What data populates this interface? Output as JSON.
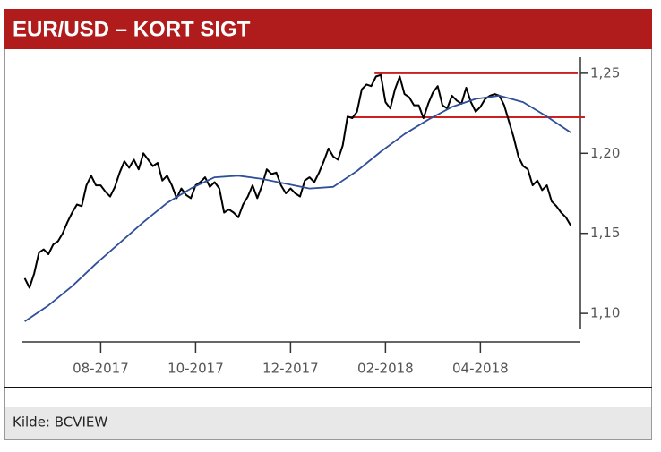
{
  "chart_data": {
    "type": "line",
    "title": "EUR/USD – KORT SIGT",
    "source": "Kilde: BCVIEW",
    "xlim": [
      6.35,
      18.05
    ],
    "xticks": [
      {
        "value": 8,
        "label": "08-2017"
      },
      {
        "value": 10,
        "label": "10-2017"
      },
      {
        "value": 12,
        "label": "12-2017"
      },
      {
        "value": 14,
        "label": "02-2018"
      },
      {
        "value": 16,
        "label": "04-2018"
      }
    ],
    "ylim": [
      1.09,
      1.26
    ],
    "yticks": [
      {
        "value": 1.25,
        "label": "1,25"
      },
      {
        "value": 1.2,
        "label": "1,20"
      },
      {
        "value": 1.15,
        "label": "1,15"
      },
      {
        "value": 1.1,
        "label": "1,10"
      }
    ],
    "series": [
      {
        "color": "#000000",
        "x": [
          6.4,
          6.5,
          6.6,
          6.7,
          6.8,
          6.9,
          7.0,
          7.1,
          7.2,
          7.3,
          7.4,
          7.5,
          7.6,
          7.7,
          7.8,
          7.9,
          8.0,
          8.1,
          8.2,
          8.3,
          8.4,
          8.5,
          8.6,
          8.7,
          8.8,
          8.9,
          9.0,
          9.1,
          9.2,
          9.3,
          9.4,
          9.5,
          9.6,
          9.7,
          9.8,
          9.9,
          10.0,
          10.1,
          10.2,
          10.3,
          10.4,
          10.5,
          10.6,
          10.7,
          10.8,
          10.9,
          11.0,
          11.1,
          11.2,
          11.3,
          11.4,
          11.5,
          11.6,
          11.7,
          11.8,
          11.9,
          12.0,
          12.1,
          12.2,
          12.3,
          12.4,
          12.5,
          12.6,
          12.7,
          12.8,
          12.9,
          13.0,
          13.1,
          13.2,
          13.3,
          13.4,
          13.5,
          13.6,
          13.7,
          13.8,
          13.9,
          14.0,
          14.1,
          14.2,
          14.3,
          14.4,
          14.5,
          14.6,
          14.7,
          14.8,
          14.9,
          15.0,
          15.1,
          15.2,
          15.3,
          15.4,
          15.5,
          15.6,
          15.7,
          15.8,
          15.9,
          16.0,
          16.1,
          16.2,
          16.3,
          16.4,
          16.5,
          16.6,
          16.7,
          16.8,
          16.9,
          17.0,
          17.1,
          17.2,
          17.3,
          17.4,
          17.5,
          17.6,
          17.7,
          17.8,
          17.9
        ],
        "values": [
          1.122,
          1.116,
          1.125,
          1.138,
          1.14,
          1.137,
          1.143,
          1.145,
          1.15,
          1.157,
          1.163,
          1.168,
          1.167,
          1.18,
          1.186,
          1.18,
          1.18,
          1.176,
          1.173,
          1.179,
          1.188,
          1.195,
          1.191,
          1.196,
          1.19,
          1.2,
          1.196,
          1.192,
          1.194,
          1.183,
          1.186,
          1.18,
          1.172,
          1.178,
          1.174,
          1.172,
          1.18,
          1.182,
          1.185,
          1.179,
          1.182,
          1.178,
          1.163,
          1.165,
          1.163,
          1.16,
          1.168,
          1.173,
          1.18,
          1.172,
          1.18,
          1.19,
          1.187,
          1.188,
          1.18,
          1.175,
          1.178,
          1.175,
          1.173,
          1.183,
          1.185,
          1.182,
          1.188,
          1.195,
          1.203,
          1.198,
          1.196,
          1.205,
          1.223,
          1.222,
          1.226,
          1.24,
          1.243,
          1.242,
          1.248,
          1.249,
          1.232,
          1.228,
          1.24,
          1.248,
          1.237,
          1.235,
          1.23,
          1.23,
          1.222,
          1.231,
          1.238,
          1.242,
          1.23,
          1.228,
          1.236,
          1.233,
          1.231,
          1.241,
          1.232,
          1.226,
          1.229,
          1.234,
          1.236,
          1.237,
          1.236,
          1.23,
          1.22,
          1.21,
          1.198,
          1.192,
          1.19,
          1.18,
          1.183,
          1.177,
          1.18,
          1.17,
          1.167,
          1.163,
          1.16,
          1.155
        ]
      },
      {
        "color": "#2f4f9a",
        "x": [
          6.4,
          6.9,
          7.4,
          7.9,
          8.4,
          8.9,
          9.4,
          9.9,
          10.4,
          10.9,
          11.4,
          11.9,
          12.4,
          12.9,
          13.4,
          13.9,
          14.4,
          14.9,
          15.4,
          15.9,
          16.4,
          16.9,
          17.4,
          17.9
        ],
        "values": [
          1.095,
          1.105,
          1.117,
          1.131,
          1.144,
          1.157,
          1.169,
          1.178,
          1.185,
          1.186,
          1.184,
          1.181,
          1.178,
          1.179,
          1.189,
          1.201,
          1.212,
          1.221,
          1.229,
          1.234,
          1.236,
          1.232,
          1.223,
          1.213
        ]
      }
    ],
    "lines": [
      {
        "value": 1.25,
        "x": [
          13.77,
          18.05
        ],
        "color": "#cc1f1f"
      },
      {
        "value": 1.2225,
        "x": [
          13.2,
          18.2
        ],
        "color": "#cc1f1f"
      }
    ]
  }
}
